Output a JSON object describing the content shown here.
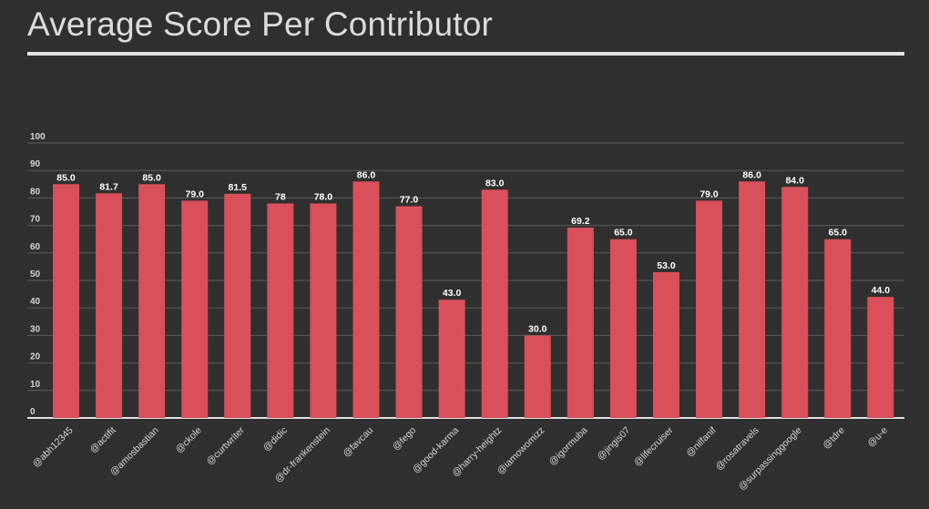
{
  "chart_data": {
    "type": "bar",
    "title": "Average Score Per Contributor",
    "xlabel": "",
    "ylabel": "",
    "ylim": [
      0,
      100
    ],
    "yticks": [
      "0",
      "10",
      "20",
      "30",
      "40",
      "50",
      "60",
      "70",
      "80",
      "90",
      "100"
    ],
    "grid": true,
    "bar_color": "#d9505a",
    "categories": [
      "@abh12345",
      "@actifit",
      "@amosbastian",
      "@ckole",
      "@curtwriter",
      "@didic",
      "@dr-frankenstein",
      "@favcau",
      "@fego",
      "@good-karma",
      "@harry-heightz",
      "@iamowomizz",
      "@igormuba",
      "@jingis07",
      "@lifecruiser",
      "@nilfanif",
      "@rosatravels",
      "@surpassinggoogle",
      "@tdre",
      "@u-e"
    ],
    "values": [
      85.0,
      81.7,
      85.0,
      79.0,
      81.5,
      78,
      78.0,
      86.0,
      77.0,
      43.0,
      83.0,
      30.0,
      69.2,
      65.0,
      53.0,
      79.0,
      86.0,
      84.0,
      65.0,
      44.0
    ],
    "value_labels": [
      "85.0",
      "81.7",
      "85.0",
      "79.0",
      "81.5",
      "78",
      "78.0",
      "86.0",
      "77.0",
      "43.0",
      "83.0",
      "30.0",
      "69.2",
      "65.0",
      "53.0",
      "79.0",
      "86.0",
      "84.0",
      "65.0",
      "44.0"
    ]
  }
}
